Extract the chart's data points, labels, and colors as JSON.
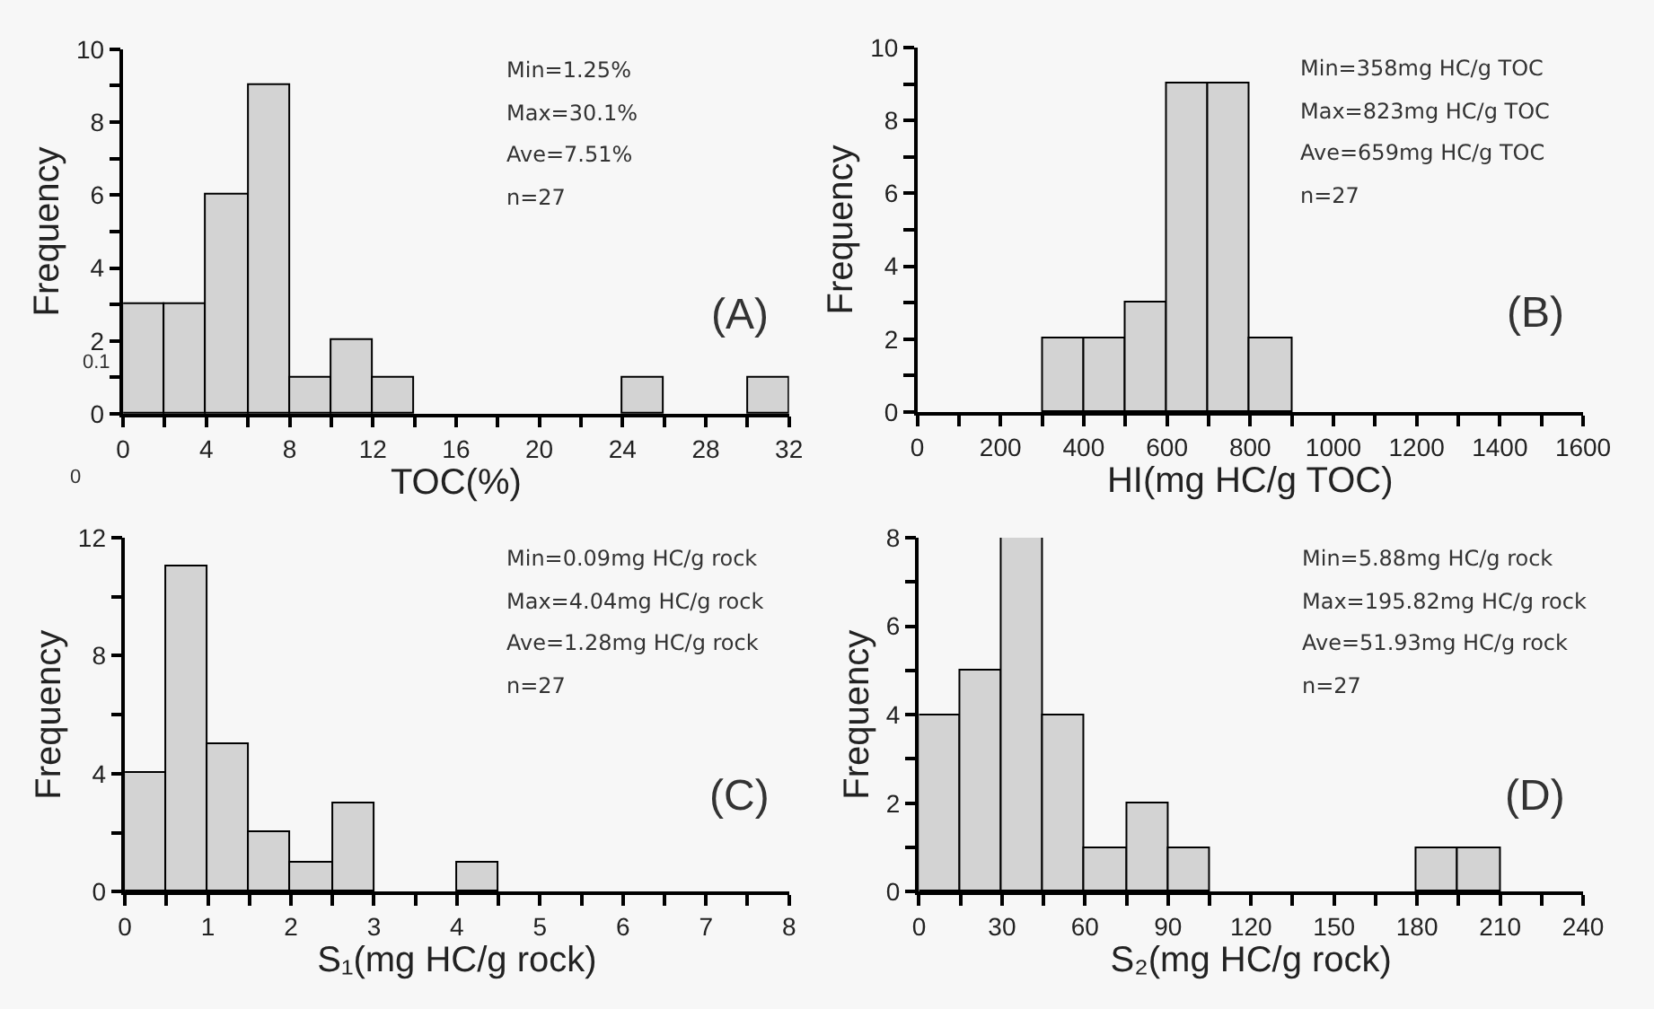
{
  "chart_data": [
    {
      "type": "histogram",
      "xlabel": "TOC(%)",
      "ylabel": "Frequency",
      "color": "#d3d3d3",
      "grid": false,
      "bins": [
        0,
        2,
        4,
        6,
        8,
        10,
        12,
        14,
        16,
        18,
        20,
        22,
        24,
        26,
        28,
        30,
        32
      ],
      "values": [
        3,
        3,
        6,
        9,
        1,
        2,
        1,
        0,
        0,
        0,
        0,
        0,
        1,
        0,
        0,
        1
      ],
      "xlim": [
        0,
        32
      ],
      "ylim": [
        0,
        10
      ],
      "xticks": [
        0,
        {
          "value": 2,
          "label": null
        },
        4,
        {
          "value": 6,
          "label": null
        },
        8,
        {
          "value": 10,
          "label": null
        },
        12,
        {
          "value": 14,
          "label": null
        },
        16,
        {
          "value": 18,
          "label": null
        },
        20,
        {
          "value": 22,
          "label": null
        },
        24,
        {
          "value": 26,
          "label": null
        },
        28,
        {
          "value": 30,
          "label": null
        },
        32
      ],
      "yticks": [
        0,
        {
          "value": 1,
          "label": null
        },
        2,
        {
          "value": 3,
          "label": null
        },
        4,
        {
          "value": 5,
          "label": null
        },
        6,
        {
          "value": 7,
          "label": null
        },
        8,
        {
          "value": 9,
          "label": null
        },
        10
      ],
      "annotations": [
        "Min=1.25%",
        "Max=30.1%",
        "Ave=7.51%",
        "n=27",
        "(A)",
        "0.1",
        "0"
      ]
    },
    {
      "type": "histogram",
      "xlabel": "HI(mg HC/g TOC)",
      "ylabel": "Frequency",
      "color": "#d3d3d3",
      "grid": false,
      "bins": [
        300,
        400,
        500,
        600,
        700,
        800,
        900
      ],
      "values": [
        2,
        2,
        3,
        9,
        9,
        2
      ],
      "xlim": [
        0,
        1600
      ],
      "ylim": [
        0,
        10
      ],
      "xticks": [
        0,
        {
          "value": 100,
          "label": null
        },
        200,
        {
          "value": 300,
          "label": null
        },
        400,
        {
          "value": 500,
          "label": null
        },
        600,
        {
          "value": 700,
          "label": null
        },
        800,
        {
          "value": 900,
          "label": null
        },
        1000,
        {
          "value": 1100,
          "label": null
        },
        1200,
        {
          "value": 1300,
          "label": null
        },
        1400,
        {
          "value": 1500,
          "label": null
        },
        1600
      ],
      "yticks": [
        0,
        {
          "value": 1,
          "label": null
        },
        2,
        {
          "value": 3,
          "label": null
        },
        4,
        {
          "value": 5,
          "label": null
        },
        6,
        {
          "value": 7,
          "label": null
        },
        8,
        {
          "value": 9,
          "label": null
        },
        10
      ],
      "annotations": [
        "Min=358mg HC/g TOC",
        "Max=823mg HC/g TOC",
        "Ave=659mg HC/g TOC",
        "n=27",
        "(B)"
      ]
    },
    {
      "type": "histogram",
      "xlabel": "S₁(mg HC/g rock)",
      "ylabel": "Frequency",
      "color": "#d3d3d3",
      "grid": false,
      "bins": [
        0,
        0.5,
        1,
        1.5,
        2,
        2.5,
        3,
        3.5,
        4,
        4.5
      ],
      "values": [
        4,
        11,
        5,
        2,
        1,
        3,
        0,
        0,
        1
      ],
      "xlim": [
        0,
        8
      ],
      "ylim": [
        0,
        12
      ],
      "xticks": [
        0,
        {
          "value": 0.5,
          "label": null
        },
        1,
        {
          "value": 1.5,
          "label": null
        },
        2,
        {
          "value": 2.5,
          "label": null
        },
        3,
        {
          "value": 3.5,
          "label": null
        },
        4,
        {
          "value": 4.5,
          "label": null
        },
        5,
        {
          "value": 5.5,
          "label": null
        },
        6,
        {
          "value": 6.5,
          "label": null
        },
        7,
        {
          "value": 7.5,
          "label": null
        },
        8
      ],
      "yticks": [
        0,
        {
          "value": 2,
          "label": null
        },
        4,
        {
          "value": 6,
          "label": null
        },
        8,
        {
          "value": 10,
          "label": null
        },
        12
      ],
      "annotations": [
        "Min=0.09mg HC/g rock",
        "Max=4.04mg HC/g rock",
        "Ave=1.28mg HC/g rock",
        "n=27",
        "(C)"
      ]
    },
    {
      "type": "histogram",
      "xlabel": "S₂(mg HC/g rock)",
      "ylabel": "Frequency",
      "color": "#d3d3d3",
      "grid": false,
      "bins": [
        0,
        15,
        30,
        45,
        60,
        75,
        90,
        105,
        120,
        135,
        150,
        165,
        180,
        195,
        210
      ],
      "values": [
        4,
        5,
        8,
        4,
        1,
        2,
        1,
        0,
        0,
        0,
        0,
        0,
        1,
        1
      ],
      "xlim": [
        0,
        240
      ],
      "ylim": [
        0,
        8
      ],
      "xticks": [
        0,
        {
          "value": 15,
          "label": null
        },
        30,
        {
          "value": 45,
          "label": null
        },
        60,
        {
          "value": 75,
          "label": null
        },
        90,
        {
          "value": 105,
          "label": null
        },
        120,
        {
          "value": 135,
          "label": null
        },
        150,
        {
          "value": 165,
          "label": null
        },
        180,
        {
          "value": 195,
          "label": null
        },
        210,
        {
          "value": 225,
          "label": null
        },
        240
      ],
      "yticks": [
        0,
        {
          "value": 1,
          "label": null
        },
        2,
        {
          "value": 3,
          "label": null
        },
        4,
        {
          "value": 5,
          "label": null
        },
        6,
        {
          "value": 7,
          "label": null
        },
        8
      ],
      "annotations": [
        "Min=5.88mg HC/g rock",
        "Max=195.82mg HC/g rock",
        "Ave=51.93mg HC/g rock",
        "n=27",
        "(D)"
      ]
    }
  ]
}
